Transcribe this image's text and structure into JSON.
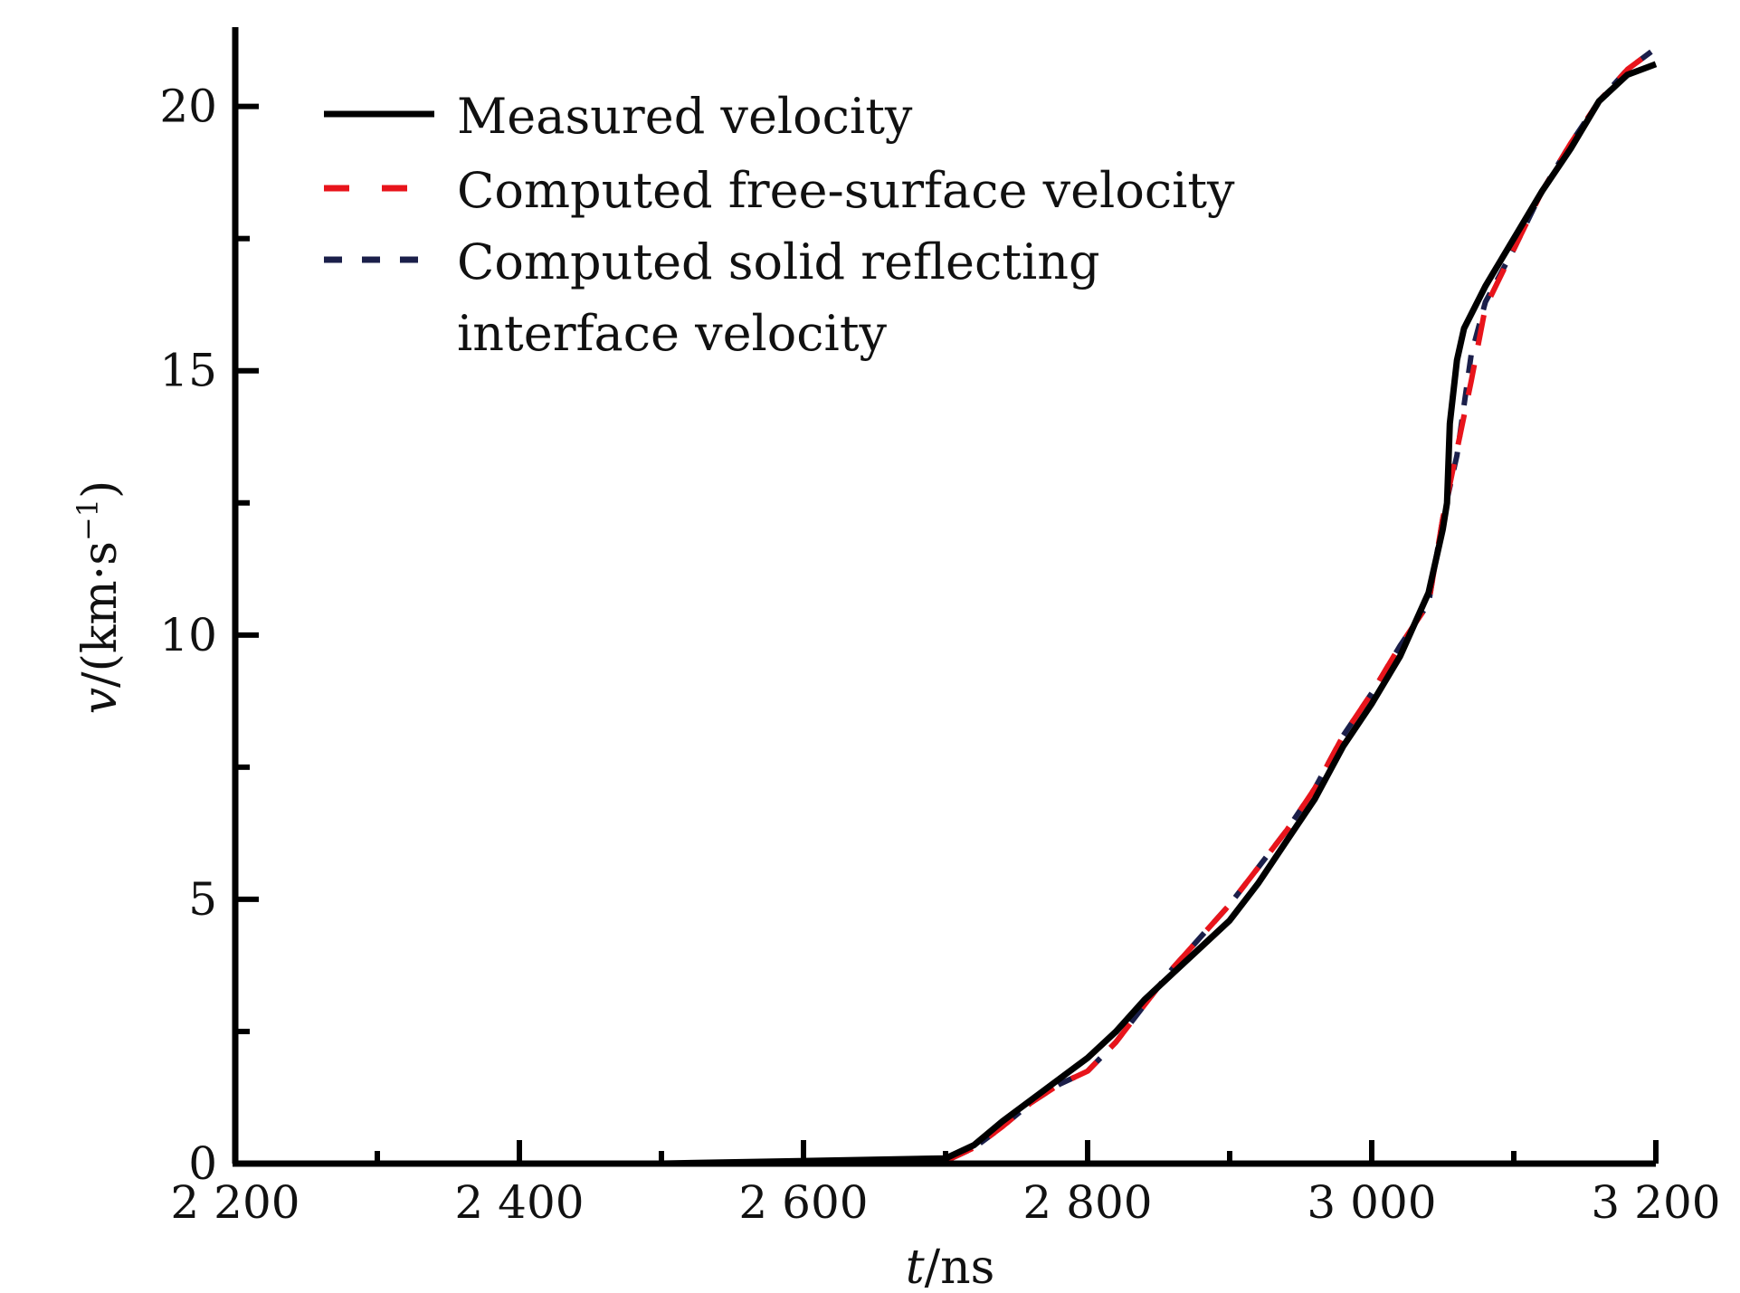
{
  "chart_data": {
    "type": "line",
    "xlabel": {
      "var": "t",
      "unit": "/ns"
    },
    "ylabel": {
      "var": "v",
      "unit": "/(km·s",
      "sup": "−1",
      "close": ")"
    },
    "xlim": [
      2200,
      3200
    ],
    "ylim": [
      0,
      21.5
    ],
    "x_ticks": [
      2200,
      2400,
      2600,
      2800,
      3000,
      3200
    ],
    "x_tick_labels": [
      "2 200",
      "2 400",
      "2 600",
      "2 800",
      "3 000",
      "3 200"
    ],
    "y_ticks": [
      0,
      5,
      10,
      15,
      20
    ],
    "y_tick_labels": [
      "0",
      "5",
      "10",
      "15",
      "20"
    ],
    "grid": false,
    "legend_position": "top-left",
    "series": [
      {
        "name": "Measured velocity",
        "color": "#000000",
        "dash": "solid",
        "x": [
          2200,
          2300,
          2500,
          2700,
          2720,
          2740,
          2760,
          2780,
          2800,
          2820,
          2840,
          2860,
          2880,
          2900,
          2920,
          2940,
          2960,
          2980,
          3000,
          3020,
          3040,
          3050,
          3053,
          3055,
          3060,
          3065,
          3080,
          3100,
          3120,
          3140,
          3160,
          3180,
          3200
        ],
        "y": [
          0,
          0,
          0,
          0.1,
          0.35,
          0.8,
          1.2,
          1.6,
          2.0,
          2.5,
          3.1,
          3.6,
          4.1,
          4.6,
          5.3,
          6.1,
          6.9,
          7.9,
          8.7,
          9.6,
          10.8,
          12.0,
          12.5,
          14.0,
          15.2,
          15.8,
          16.6,
          17.5,
          18.4,
          19.2,
          20.1,
          20.6,
          20.8
        ]
      },
      {
        "name": "Computed free-surface velocity",
        "color": "#e8141b",
        "dash": "long-dash",
        "x": [
          2200,
          2300,
          2500,
          2700,
          2720,
          2740,
          2760,
          2780,
          2800,
          2820,
          2840,
          2860,
          2880,
          2900,
          2920,
          2940,
          2960,
          2980,
          3000,
          3020,
          3040,
          3050,
          3060,
          3070,
          3080,
          3100,
          3120,
          3140,
          3160,
          3180,
          3200
        ],
        "y": [
          0,
          0,
          0,
          0.05,
          0.3,
          0.7,
          1.15,
          1.5,
          1.75,
          2.3,
          3.0,
          3.7,
          4.3,
          4.9,
          5.6,
          6.3,
          7.1,
          8.1,
          8.9,
          9.8,
          10.6,
          12.2,
          13.5,
          14.8,
          16.2,
          17.3,
          18.4,
          19.3,
          20.1,
          20.7,
          21.1
        ]
      },
      {
        "name": "Computed solid reflecting interface velocity",
        "color": "#1b1f4a",
        "dash": "short-dash",
        "x": [
          2200,
          2300,
          2500,
          2700,
          2720,
          2740,
          2760,
          2780,
          2800,
          2820,
          2840,
          2860,
          2880,
          2900,
          2920,
          2940,
          2960,
          2980,
          3000,
          3020,
          3040,
          3050,
          3060,
          3070,
          3080,
          3100,
          3120,
          3140,
          3160,
          3180,
          3200
        ],
        "y": [
          0,
          0,
          0,
          0.05,
          0.3,
          0.7,
          1.15,
          1.5,
          1.75,
          2.3,
          3.0,
          3.7,
          4.3,
          4.9,
          5.6,
          6.3,
          7.1,
          8.1,
          8.9,
          9.8,
          10.6,
          12.2,
          13.4,
          15.3,
          16.3,
          17.3,
          18.4,
          19.3,
          20.1,
          20.7,
          21.1
        ]
      }
    ],
    "legend": [
      {
        "text": "Measured velocity"
      },
      {
        "text": "Computed free-surface velocity"
      },
      {
        "text": "Computed solid reflecting"
      },
      {
        "text": "interface velocity"
      }
    ]
  }
}
